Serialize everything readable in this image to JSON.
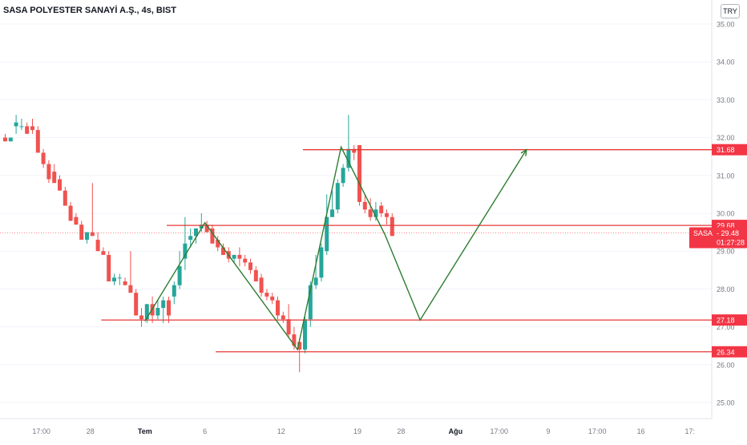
{
  "header": {
    "title": "SASA POLYESTER SANAYİ A.Ş., 4s, BIST",
    "currency": "TRY"
  },
  "colors": {
    "up": "#26a69a",
    "down": "#ef5350",
    "level_line": "#e53935",
    "drawing": "#2e7d32",
    "axis_text": "#787b86",
    "price_tag": "#f23645"
  },
  "chart_data": {
    "type": "candlestick",
    "title": "SASA POLYESTER SANAYİ A.Ş., 4s, BIST",
    "ylim": [
      24.6,
      35.3
    ],
    "y_ticks": [
      25.0,
      26.0,
      27.0,
      28.0,
      29.0,
      30.0,
      31.0,
      32.0,
      33.0,
      34.0,
      35.0
    ],
    "x_ticks": [
      {
        "label": "17:00",
        "bar": 7
      },
      {
        "label": "28",
        "bar": 16
      },
      {
        "label": "Tem",
        "bar": 26,
        "bold": true
      },
      {
        "label": "6",
        "bar": 37
      },
      {
        "label": "12",
        "bar": 51
      },
      {
        "label": "19",
        "bar": 65
      },
      {
        "label": "28",
        "bar": 73
      },
      {
        "label": "Ağu",
        "bar": 83,
        "bold": true
      },
      {
        "label": "17:00",
        "bar": 91
      },
      {
        "label": "9",
        "bar": 100
      },
      {
        "label": "17:00",
        "bar": 109
      },
      {
        "label": "16",
        "bar": 117
      },
      {
        "label": "17:",
        "bar": 126
      }
    ],
    "candles": [
      [
        32.0,
        32.1,
        31.9,
        31.9
      ],
      [
        31.9,
        32.0,
        31.9,
        32.0
      ],
      [
        32.3,
        32.6,
        32.1,
        32.4
      ],
      [
        32.3,
        32.5,
        32.2,
        32.3
      ],
      [
        32.3,
        32.4,
        32.1,
        32.1
      ],
      [
        32.3,
        32.5,
        32.1,
        32.2
      ],
      [
        32.2,
        32.3,
        31.7,
        31.6
      ],
      [
        31.6,
        31.7,
        31.2,
        31.3
      ],
      [
        31.3,
        31.4,
        30.8,
        30.9
      ],
      [
        31.1,
        31.3,
        30.9,
        30.8
      ],
      [
        30.9,
        31.0,
        30.6,
        30.6
      ],
      [
        30.6,
        30.7,
        30.3,
        30.2
      ],
      [
        30.2,
        30.3,
        29.8,
        29.8
      ],
      [
        29.9,
        30.0,
        29.7,
        29.7
      ],
      [
        29.7,
        29.8,
        29.4,
        29.3
      ],
      [
        29.3,
        29.5,
        29.2,
        29.5
      ],
      [
        29.5,
        30.8,
        29.4,
        29.4
      ],
      [
        29.3,
        29.5,
        29.0,
        29.0
      ],
      [
        29.0,
        29.1,
        28.9,
        28.9
      ],
      [
        28.9,
        29.0,
        28.3,
        28.2
      ],
      [
        28.2,
        28.4,
        28.1,
        28.3
      ],
      [
        28.3,
        28.4,
        28.1,
        28.3
      ],
      [
        28.2,
        28.3,
        28.1,
        28.1
      ],
      [
        28.1,
        29.0,
        27.9,
        27.9
      ],
      [
        27.9,
        28.0,
        27.3,
        27.3
      ],
      [
        27.3,
        27.5,
        27.0,
        27.2
      ],
      [
        27.2,
        27.6,
        27.1,
        27.6
      ],
      [
        27.6,
        27.8,
        27.1,
        27.3
      ],
      [
        27.3,
        27.7,
        27.2,
        27.5
      ],
      [
        27.5,
        27.8,
        27.1,
        27.7
      ],
      [
        27.7,
        27.8,
        27.1,
        27.3
      ],
      [
        27.8,
        28.2,
        27.6,
        28.1
      ],
      [
        28.1,
        29.0,
        28.0,
        28.6
      ],
      [
        28.8,
        29.9,
        28.5,
        29.2
      ],
      [
        29.3,
        29.6,
        29.1,
        29.4
      ],
      [
        29.4,
        29.6,
        29.2,
        29.6
      ],
      [
        29.6,
        30.0,
        29.5,
        29.7
      ],
      [
        29.7,
        29.8,
        29.5,
        29.5
      ],
      [
        29.6,
        29.7,
        29.2,
        29.2
      ],
      [
        29.3,
        29.4,
        29.0,
        29.1
      ],
      [
        29.1,
        29.2,
        28.9,
        28.9
      ],
      [
        29.0,
        29.1,
        28.7,
        28.8
      ],
      [
        28.8,
        28.9,
        28.7,
        28.9
      ],
      [
        28.9,
        29.1,
        28.6,
        28.8
      ],
      [
        28.8,
        28.9,
        28.6,
        28.7
      ],
      [
        28.7,
        28.8,
        28.4,
        28.5
      ],
      [
        28.5,
        28.6,
        28.2,
        28.2
      ],
      [
        28.3,
        28.4,
        27.8,
        27.9
      ],
      [
        27.9,
        28.0,
        27.7,
        27.8
      ],
      [
        27.8,
        27.9,
        27.6,
        27.7
      ],
      [
        27.7,
        27.8,
        27.2,
        27.3
      ],
      [
        27.3,
        27.4,
        27.1,
        27.2
      ],
      [
        27.2,
        27.6,
        26.7,
        26.8
      ],
      [
        26.8,
        27.0,
        26.4,
        26.5
      ],
      [
        26.6,
        26.7,
        25.8,
        26.4
      ],
      [
        26.4,
        27.3,
        26.3,
        27.2
      ],
      [
        27.2,
        28.2,
        27.0,
        28.1
      ],
      [
        28.1,
        28.9,
        28.0,
        28.3
      ],
      [
        28.3,
        29.2,
        28.2,
        29.1
      ],
      [
        29.0,
        30.5,
        28.9,
        29.9
      ],
      [
        29.9,
        30.6,
        29.9,
        30.1
      ],
      [
        30.1,
        30.9,
        30.0,
        30.8
      ],
      [
        30.8,
        31.3,
        30.7,
        31.2
      ],
      [
        31.2,
        32.6,
        31.1,
        31.7
      ],
      [
        31.7,
        31.8,
        31.4,
        31.6
      ],
      [
        31.8,
        31.7,
        30.2,
        30.3
      ],
      [
        30.3,
        30.5,
        30.0,
        30.1
      ],
      [
        30.1,
        30.4,
        29.8,
        29.9
      ],
      [
        29.9,
        30.3,
        29.8,
        30.1
      ],
      [
        30.2,
        30.3,
        29.9,
        30.0
      ],
      [
        30.0,
        30.1,
        29.7,
        29.9
      ],
      [
        29.9,
        30.0,
        29.4,
        29.4
      ]
    ],
    "levels": [
      {
        "label": "31.68",
        "value": 31.68,
        "from_bar": 55
      },
      {
        "label": "29.68",
        "value": 29.68,
        "from_bar": 30
      },
      {
        "label": "27.18",
        "value": 27.18,
        "from_bar": 18
      },
      {
        "label": "26.34",
        "value": 26.34,
        "from_bar": 39
      }
    ],
    "last_price": {
      "symbol": "SASA",
      "value": 29.48,
      "label": "29.48",
      "countdown": "01:27:28"
    },
    "zigzag": [
      {
        "bar": 26,
        "price": 27.15
      },
      {
        "bar": 37,
        "price": 29.75
      },
      {
        "bar": 54,
        "price": 26.4
      },
      {
        "bar": 62,
        "price": 31.75
      },
      {
        "bar": 70,
        "price": 29.45
      },
      {
        "bar": 76.5,
        "price": 27.18
      },
      {
        "bar": 96,
        "price": 31.68
      }
    ],
    "grid": "horizontal"
  }
}
